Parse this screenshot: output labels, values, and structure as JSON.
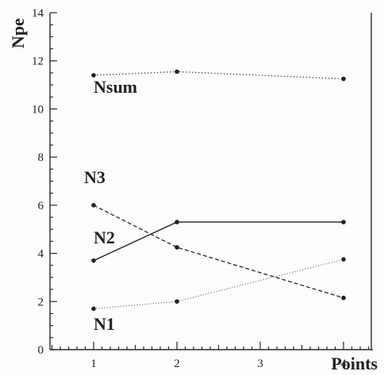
{
  "chart_data": {
    "type": "line",
    "xlabel": "Points",
    "ylabel": "Npe",
    "xlim": [
      0.5,
      4.5
    ],
    "ylim": [
      0,
      14
    ],
    "xticks": [
      1,
      2,
      3,
      4
    ],
    "yticks": [
      0,
      2,
      4,
      6,
      8,
      10,
      12,
      14
    ],
    "grid": false,
    "series": [
      {
        "name": "Nsum",
        "x": [
          1,
          2,
          4
        ],
        "values": [
          11.4,
          11.55,
          11.25
        ],
        "style": "dotted",
        "color": "#555555"
      },
      {
        "name": "N3",
        "x": [
          1,
          2,
          4
        ],
        "values": [
          6.0,
          4.25,
          2.15
        ],
        "style": "dashed",
        "color": "#333333"
      },
      {
        "name": "N2",
        "x": [
          1,
          2,
          4
        ],
        "values": [
          3.7,
          5.3,
          5.3
        ],
        "style": "solid",
        "color": "#222222"
      },
      {
        "name": "N1",
        "x": [
          1,
          2,
          4
        ],
        "values": [
          1.7,
          2.0,
          3.75
        ],
        "style": "dotted-light",
        "color": "#888888"
      }
    ]
  }
}
